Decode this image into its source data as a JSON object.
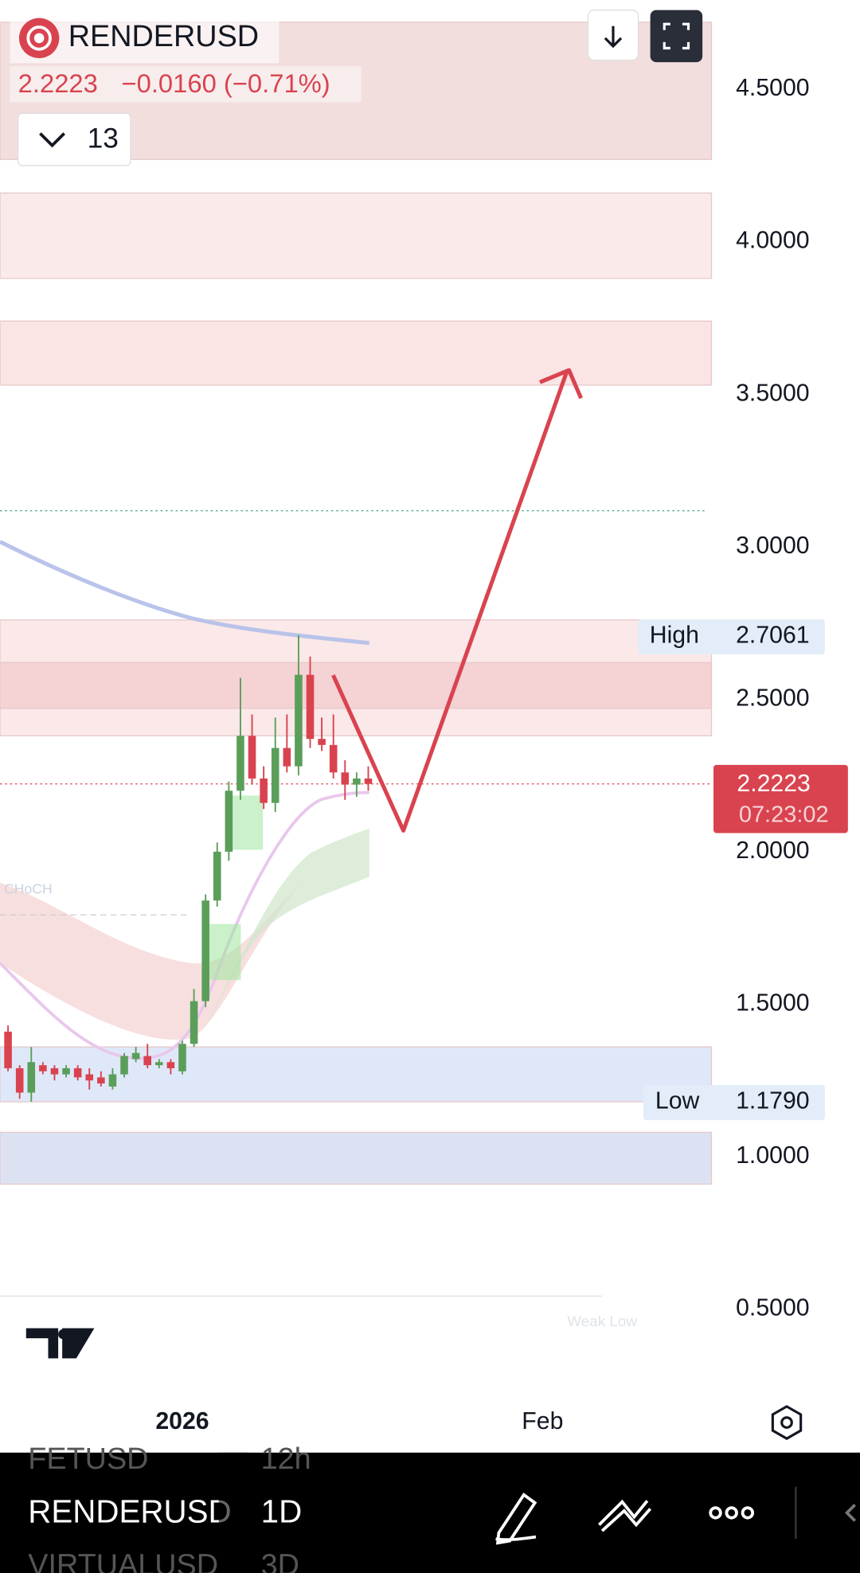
{
  "header": {
    "symbol": "RENDERUSD",
    "change": "−0.0160 (−0.71%)",
    "indicator_count": "13"
  },
  "chart_data": {
    "type": "candlestick",
    "up_color": "#5a9e5a",
    "down_color": "#d9434f",
    "open": [
      1.41,
      1.29,
      1.21,
      1.3,
      1.29,
      1.27,
      1.29,
      1.27,
      1.26,
      1.23,
      1.27,
      1.32,
      1.33,
      1.3,
      1.31,
      1.28,
      1.37,
      1.51,
      1.84,
      2.0,
      2.2,
      2.38,
      2.24,
      2.16,
      2.34,
      2.28,
      2.58,
      2.37,
      2.35,
      2.26,
      2.22,
      2.24
    ],
    "high": [
      1.43,
      1.3,
      1.36,
      1.31,
      1.3,
      1.3,
      1.3,
      1.29,
      1.28,
      1.29,
      1.34,
      1.36,
      1.37,
      1.32,
      1.32,
      1.38,
      1.55,
      1.86,
      2.03,
      2.23,
      2.57,
      2.45,
      2.28,
      2.44,
      2.45,
      2.71,
      2.64,
      2.44,
      2.45,
      2.3,
      2.26,
      2.28
    ],
    "low": [
      1.28,
      1.19,
      1.18,
      1.27,
      1.25,
      1.26,
      1.25,
      1.22,
      1.23,
      1.22,
      1.26,
      1.31,
      1.29,
      1.29,
      1.27,
      1.27,
      1.36,
      1.49,
      1.82,
      1.97,
      2.17,
      2.22,
      2.14,
      2.13,
      2.26,
      2.25,
      2.34,
      2.33,
      2.24,
      2.17,
      2.18,
      2.2
    ],
    "close": [
      1.29,
      1.21,
      1.31,
      1.28,
      1.27,
      1.29,
      1.26,
      1.25,
      1.24,
      1.27,
      1.33,
      1.34,
      1.3,
      1.31,
      1.29,
      1.37,
      1.51,
      1.84,
      2.0,
      2.2,
      2.38,
      2.24,
      2.16,
      2.34,
      2.28,
      2.58,
      2.37,
      2.35,
      2.26,
      2.22,
      2.24,
      2.2223
    ],
    "last_price": 2.2223,
    "countdown": "07:23:02",
    "high_label": "High",
    "high_value": 2.7061,
    "low_label": "Low",
    "low_value": {
      "value": 1.179,
      "label": "1.1790"
    },
    "annotations": [
      "CHoCH",
      "Weak Low"
    ],
    "ylim": [
      0.2204,
      4.7928
    ],
    "yticks": [
      {
        "value": 4.5,
        "label": "4.5000"
      },
      {
        "value": 4,
        "label": "4.0000"
      },
      {
        "value": 3.5,
        "label": "3.5000"
      },
      {
        "value": 3,
        "label": "3.0000"
      },
      {
        "value": 2.5,
        "label": "2.5000"
      },
      {
        "value": 2,
        "label": "2.0000"
      },
      {
        "value": 1.5,
        "label": "1.5000"
      },
      {
        "value": 1,
        "label": "1.0000"
      },
      {
        "value": 0.5,
        "label": "0.5000"
      }
    ],
    "xticks": [
      {
        "value": 15,
        "label": "2026"
      },
      {
        "value": 46,
        "label": "Feb"
      }
    ],
    "zones": [
      {
        "from": 4.27,
        "to": 4.72,
        "color": "#f3dede"
      },
      {
        "from": 3.88,
        "to": 4.16,
        "color": "#fbeaea"
      },
      {
        "from": 3.53,
        "to": 3.74,
        "color": "#fbe4e4"
      },
      {
        "from": 2.38,
        "to": 2.76,
        "color": "#fbe8e8"
      },
      {
        "from": 2.47,
        "to": 2.62,
        "color": "#f5d2d4"
      },
      {
        "from": 1.18,
        "to": 1.36,
        "color": "#dfe8f8"
      },
      {
        "from": 0.91,
        "to": 1.08,
        "color": "#dde2f3"
      }
    ],
    "levels": [
      {
        "value": 3.118,
        "color": "#4a9f8f"
      }
    ]
  },
  "watchlist": [
    {
      "symbol": "FETUSD",
      "interval": "12h"
    },
    {
      "symbol": "RENDERUSD",
      "interval": "1D"
    },
    {
      "symbol": "VIRTUALUSD",
      "interval": "3D"
    }
  ]
}
